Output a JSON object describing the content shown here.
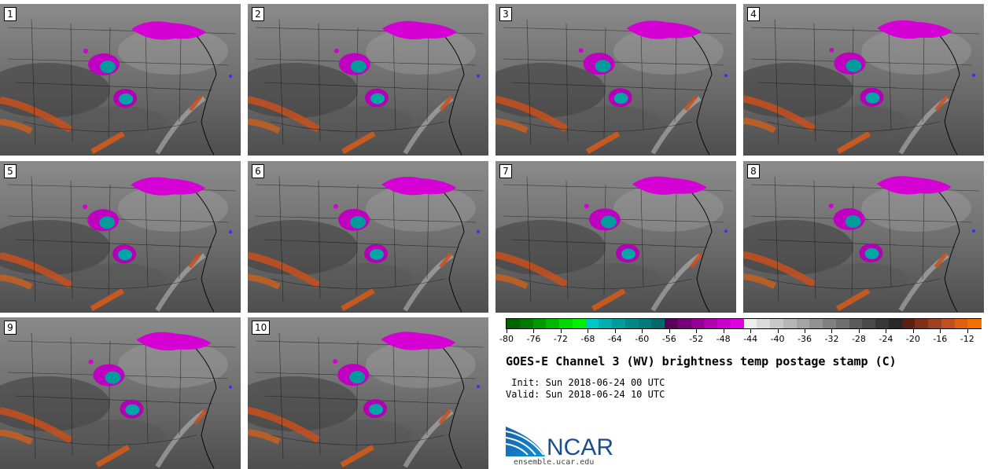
{
  "panels": [
    {
      "label": "1"
    },
    {
      "label": "2"
    },
    {
      "label": "3"
    },
    {
      "label": "4"
    },
    {
      "label": "5"
    },
    {
      "label": "6"
    },
    {
      "label": "7"
    },
    {
      "label": "8"
    },
    {
      "label": "9"
    },
    {
      "label": "10"
    }
  ],
  "colorbar": {
    "tick_labels": [
      "-80",
      "-76",
      "-72",
      "-68",
      "-64",
      "-60",
      "-56",
      "-52",
      "-48",
      "-44",
      "-40",
      "-36",
      "-32",
      "-28",
      "-24",
      "-20",
      "-16",
      "-12"
    ],
    "colors": [
      "#006400",
      "#007a00",
      "#009a00",
      "#00b800",
      "#00d800",
      "#00f000",
      "#00c8c8",
      "#00b0b0",
      "#009c9c",
      "#008888",
      "#007a7a",
      "#006a6a",
      "#5a005a",
      "#7a007a",
      "#960096",
      "#b000b0",
      "#cc00cc",
      "#e000e0",
      "#eeeeee",
      "#dadada",
      "#c8c8c8",
      "#b6b6b6",
      "#a4a4a4",
      "#929292",
      "#808080",
      "#6e6e6e",
      "#5c5c5c",
      "#4a4a4a",
      "#383838",
      "#282828",
      "#5a2010",
      "#803018",
      "#a04020",
      "#c05020",
      "#e06010",
      "#f07000"
    ]
  },
  "title": "GOES-E Channel 3 (WV) brightness temp postage stamp (C)",
  "init_line": " Init: Sun 2018-06-24 00 UTC",
  "valid_line": "Valid: Sun 2018-06-24 10 UTC",
  "logo_text": "NCAR",
  "url": "ensemble.ucar.edu"
}
